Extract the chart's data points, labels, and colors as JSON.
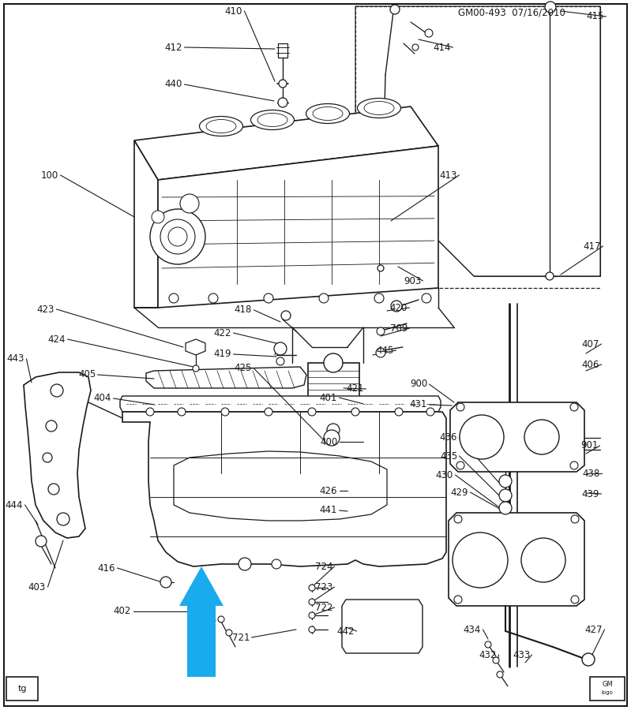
{
  "bg_color": "#ffffff",
  "line_color": "#1a1a1a",
  "cyan_color": "#1aaaee",
  "header": "GM00-493  07/16/2010",
  "figsize": [
    7.99,
    9.0
  ],
  "dpi": 100,
  "labels": [
    [
      "410",
      330,
      14,
      "right"
    ],
    [
      "412",
      255,
      62,
      "right"
    ],
    [
      "440",
      255,
      110,
      "right"
    ],
    [
      "100",
      78,
      222,
      "right"
    ],
    [
      "414",
      592,
      62,
      "right"
    ],
    [
      "415",
      750,
      22,
      "right"
    ],
    [
      "413",
      598,
      220,
      "right"
    ],
    [
      "417",
      746,
      312,
      "right"
    ],
    [
      "903",
      545,
      358,
      "right"
    ],
    [
      "418",
      330,
      395,
      "right"
    ],
    [
      "422",
      307,
      423,
      "right"
    ],
    [
      "419",
      307,
      450,
      "right"
    ],
    [
      "420",
      530,
      390,
      "right"
    ],
    [
      "709",
      530,
      417,
      "right"
    ],
    [
      "445",
      510,
      445,
      "right"
    ],
    [
      "425",
      330,
      468,
      "right"
    ],
    [
      "421",
      466,
      494,
      "right"
    ],
    [
      "423",
      78,
      392,
      "right"
    ],
    [
      "424",
      95,
      430,
      "right"
    ],
    [
      "405",
      130,
      475,
      "right"
    ],
    [
      "407",
      748,
      437,
      "right"
    ],
    [
      "900",
      553,
      488,
      "right"
    ],
    [
      "406",
      748,
      462,
      "right"
    ],
    [
      "443",
      28,
      455,
      "right"
    ],
    [
      "404",
      148,
      505,
      "right"
    ],
    [
      "401",
      440,
      505,
      "right"
    ],
    [
      "431",
      548,
      513,
      "right"
    ],
    [
      "436",
      592,
      555,
      "right"
    ],
    [
      "435",
      592,
      579,
      "right"
    ],
    [
      "430",
      588,
      604,
      "right"
    ],
    [
      "429",
      606,
      625,
      "right"
    ],
    [
      "901",
      744,
      565,
      "right"
    ],
    [
      "400",
      440,
      560,
      "right"
    ],
    [
      "438",
      748,
      602,
      "right"
    ],
    [
      "439",
      748,
      628,
      "right"
    ],
    [
      "426",
      440,
      622,
      "right"
    ],
    [
      "441",
      440,
      648,
      "right"
    ],
    [
      "416",
      148,
      720,
      "right"
    ],
    [
      "724",
      424,
      718,
      "right"
    ],
    [
      "723",
      424,
      744,
      "right"
    ],
    [
      "722",
      424,
      770,
      "right"
    ],
    [
      "721",
      330,
      810,
      "right"
    ],
    [
      "402",
      178,
      775,
      "right"
    ],
    [
      "403",
      60,
      745,
      "right"
    ],
    [
      "444",
      28,
      640,
      "right"
    ],
    [
      "442",
      461,
      800,
      "right"
    ],
    [
      "434",
      614,
      798,
      "right"
    ],
    [
      "432",
      638,
      832,
      "right"
    ],
    [
      "433",
      672,
      832,
      "right"
    ],
    [
      "427",
      756,
      798,
      "right"
    ]
  ]
}
